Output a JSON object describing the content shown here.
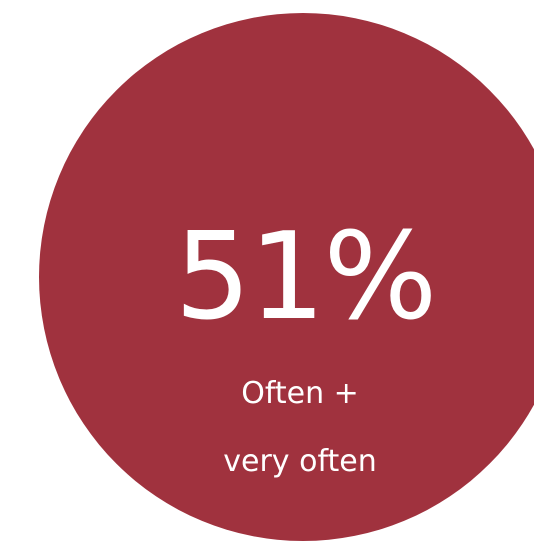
{
  "stat": {
    "value": "51%",
    "label_line1": "Often +",
    "label_line2": "very often"
  },
  "colors": {
    "circle_fill": "#A0323E",
    "text": "#FFFFFF",
    "background": "#FFFFFF"
  }
}
